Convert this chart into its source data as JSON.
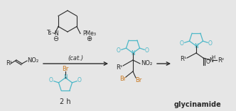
{
  "background_color": "#e6e6e6",
  "arrow_color": "#2a2a2a",
  "structure_color": "#2a2a2a",
  "succinimide_color": "#4db8c8",
  "bromine_color": "#c87820",
  "cat_text": "(cat.)",
  "time_text": "2 h",
  "glycinamide_label": "glycinamide",
  "figsize": [
    3.32,
    1.57
  ],
  "dpi": 100
}
